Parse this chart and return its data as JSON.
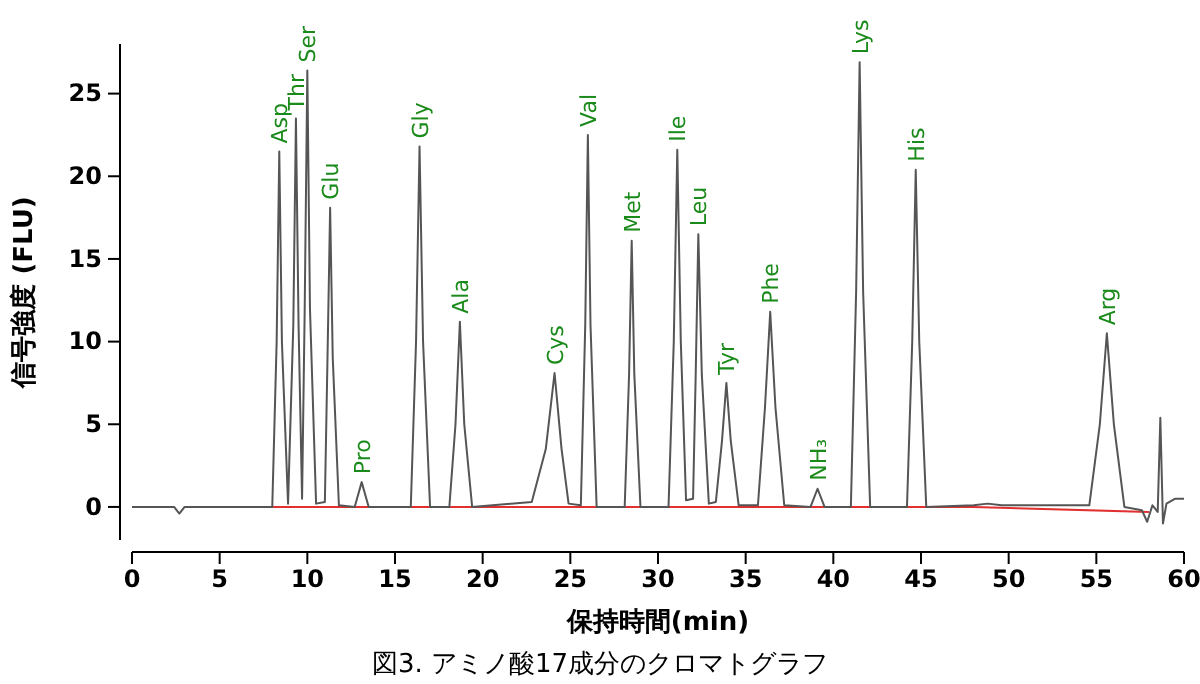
{
  "chart_data": {
    "type": "line",
    "xlabel": "保持時間(min)",
    "ylabel": "信号強度 (FLU)",
    "xlim": [
      0,
      60
    ],
    "ylim": [
      -2,
      28
    ],
    "xticks": [
      0,
      5,
      10,
      15,
      20,
      25,
      30,
      35,
      40,
      45,
      50,
      55,
      60
    ],
    "yticks": [
      0,
      5,
      10,
      15,
      20,
      25
    ],
    "grid": false,
    "marker": "none",
    "line_style": "solid",
    "series": [
      {
        "color": "#555555",
        "x": [
          0,
          2.4,
          2.7,
          3.0,
          8.0,
          8.25,
          8.4,
          8.55,
          8.9,
          9.2,
          9.35,
          9.5,
          9.7,
          9.85,
          10.0,
          10.15,
          10.5,
          11.0,
          11.15,
          11.3,
          11.45,
          11.8,
          12.7,
          13.1,
          13.5,
          15.9,
          16.2,
          16.4,
          16.6,
          17.0,
          18.1,
          18.45,
          18.7,
          18.95,
          19.4,
          22.8,
          23.6,
          24.1,
          24.5,
          24.9,
          25.6,
          25.85,
          26.0,
          26.15,
          26.5,
          28.1,
          28.35,
          28.5,
          28.65,
          29.0,
          30.6,
          30.9,
          31.1,
          31.3,
          31.6,
          32.0,
          32.15,
          32.3,
          32.5,
          32.9,
          33.3,
          33.65,
          33.9,
          34.15,
          34.6,
          35.7,
          36.1,
          36.4,
          36.7,
          37.2,
          38.7,
          39.1,
          39.5,
          41.0,
          41.3,
          41.5,
          41.7,
          42.1,
          44.2,
          44.5,
          44.7,
          44.9,
          45.3,
          48.0,
          48.8,
          49.6,
          54.6,
          55.2,
          55.6,
          56.0,
          56.6,
          57.6,
          57.9,
          58.2,
          58.5,
          58.65,
          58.8,
          59.0,
          59.5,
          60
        ],
        "values": [
          0,
          0,
          -0.4,
          0,
          0,
          10,
          21.5,
          10,
          0.2,
          11,
          23.5,
          11,
          0.5,
          12,
          26.4,
          12,
          0.2,
          0.3,
          9,
          18.1,
          9,
          0.1,
          0,
          1.5,
          0,
          0,
          10,
          21.8,
          10,
          0,
          0,
          5,
          11.2,
          5,
          0,
          0.3,
          3.5,
          8.1,
          3.5,
          0.2,
          0.1,
          11,
          22.5,
          11,
          0,
          0,
          8,
          16.1,
          8,
          0,
          0,
          10,
          21.6,
          10,
          0.4,
          0.5,
          8,
          16.5,
          8,
          0.2,
          0.3,
          4,
          7.5,
          4,
          0.1,
          0.1,
          6,
          11.8,
          6,
          0.1,
          0,
          1.1,
          0,
          0,
          13,
          26.9,
          13,
          0,
          0,
          10,
          20.4,
          10,
          0,
          0.1,
          0.2,
          0.1,
          0.1,
          5,
          10.5,
          5,
          0,
          -0.2,
          -0.9,
          0.1,
          -0.3,
          5.4,
          -1.0,
          0.2,
          0.5,
          0.5
        ]
      },
      {
        "color": "#e03030",
        "x": [
          8,
          48,
          58
        ],
        "values": [
          0,
          0,
          -0.3
        ]
      }
    ],
    "annotations": [
      {
        "text": "Asp",
        "x": 8.4,
        "y": 21.5
      },
      {
        "text": "Thr",
        "x": 9.35,
        "y": 23.5
      },
      {
        "text": "Ser",
        "x": 10.0,
        "y": 26.4
      },
      {
        "text": "Glu",
        "x": 11.3,
        "y": 18.1
      },
      {
        "text": "Pro",
        "x": 13.1,
        "y": 1.5
      },
      {
        "text": "Gly",
        "x": 16.4,
        "y": 21.8
      },
      {
        "text": "Ala",
        "x": 18.7,
        "y": 11.2
      },
      {
        "text": "Cys",
        "x": 24.1,
        "y": 8.1
      },
      {
        "text": "Val",
        "x": 26.0,
        "y": 22.5
      },
      {
        "text": "Met",
        "x": 28.5,
        "y": 16.1
      },
      {
        "text": "Ile",
        "x": 31.1,
        "y": 21.6
      },
      {
        "text": "Leu",
        "x": 32.3,
        "y": 16.5
      },
      {
        "text": "Tyr",
        "x": 33.9,
        "y": 7.5
      },
      {
        "text": "Phe",
        "x": 36.4,
        "y": 11.8
      },
      {
        "text": "NH₃",
        "x": 39.1,
        "y": 1.1
      },
      {
        "text": "Lys",
        "x": 41.5,
        "y": 26.9
      },
      {
        "text": "His",
        "x": 44.7,
        "y": 20.4
      },
      {
        "text": "Arg",
        "x": 55.6,
        "y": 10.5
      },
      "図3. アミノ酸17成分のクロマトグラフ"
    ]
  }
}
